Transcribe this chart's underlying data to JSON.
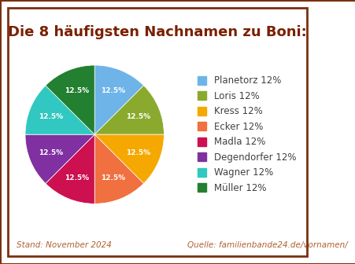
{
  "title": "Die 8 häufigsten Nachnamen zu Boni:",
  "labels": [
    "Planetorz 12%",
    "Loris 12%",
    "Kress 12%",
    "Ecker 12%",
    "Madla 12%",
    "Degendorfer 12%",
    "Wagner 12%",
    "Müller 12%"
  ],
  "slices": [
    "Planetorz",
    "Loris",
    "Kress",
    "Ecker",
    "Madla",
    "Degendorfer",
    "Wagner",
    "Müller"
  ],
  "values": [
    12.5,
    12.5,
    12.5,
    12.5,
    12.5,
    12.5,
    12.5,
    12.5
  ],
  "colors": [
    "#6eb4e8",
    "#8aaa2e",
    "#f5a800",
    "#f07040",
    "#cc1050",
    "#8030a0",
    "#30c8c0",
    "#228030"
  ],
  "autopct": "12.5%",
  "title_color": "#7a2000",
  "legend_text_color": "#404040",
  "footer_color": "#b06030",
  "footer_left": "Stand: November 2024",
  "footer_right": "Quelle: familienbande24.de/vornamen/",
  "border_color": "#7a3010",
  "background_color": "#ffffff",
  "startangle": 90,
  "title_fontsize": 13,
  "legend_fontsize": 8.5,
  "footer_fontsize": 7.5
}
